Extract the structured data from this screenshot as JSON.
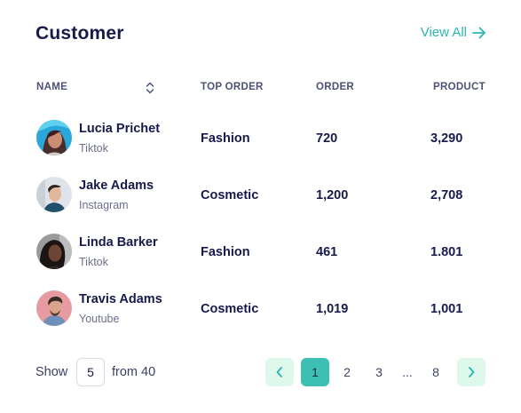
{
  "header": {
    "title": "Customer",
    "view_all": "View All"
  },
  "table": {
    "columns": {
      "name": "NAME",
      "top_order": "TOP ORDER",
      "order": "ORDER",
      "product": "PRODUCT"
    },
    "rows": [
      {
        "name": "Lucia Prichet",
        "source": "Tiktok",
        "top_order": "Fashion",
        "order": "720",
        "product": "3,290"
      },
      {
        "name": "Jake Adams",
        "source": "Instagram",
        "top_order": "Cosmetic",
        "order": "1,200",
        "product": "2,708"
      },
      {
        "name": "Linda Barker",
        "source": "Tiktok",
        "top_order": "Fashion",
        "order": "461",
        "product": "1.801"
      },
      {
        "name": "Travis Adams",
        "source": "Youtube",
        "top_order": "Cosmetic",
        "order": "1,019",
        "product": "1,001"
      }
    ]
  },
  "footer": {
    "show_label": "Show",
    "show_value": "5",
    "from_label": "from 40",
    "pages": [
      "1",
      "2",
      "3",
      "...",
      "8"
    ],
    "current_page": "1"
  },
  "colors": {
    "accent": "#2bb7b1",
    "active_page": "#3ebfb3",
    "arrow_bg": "#dff8ec",
    "title": "#171a4a"
  }
}
